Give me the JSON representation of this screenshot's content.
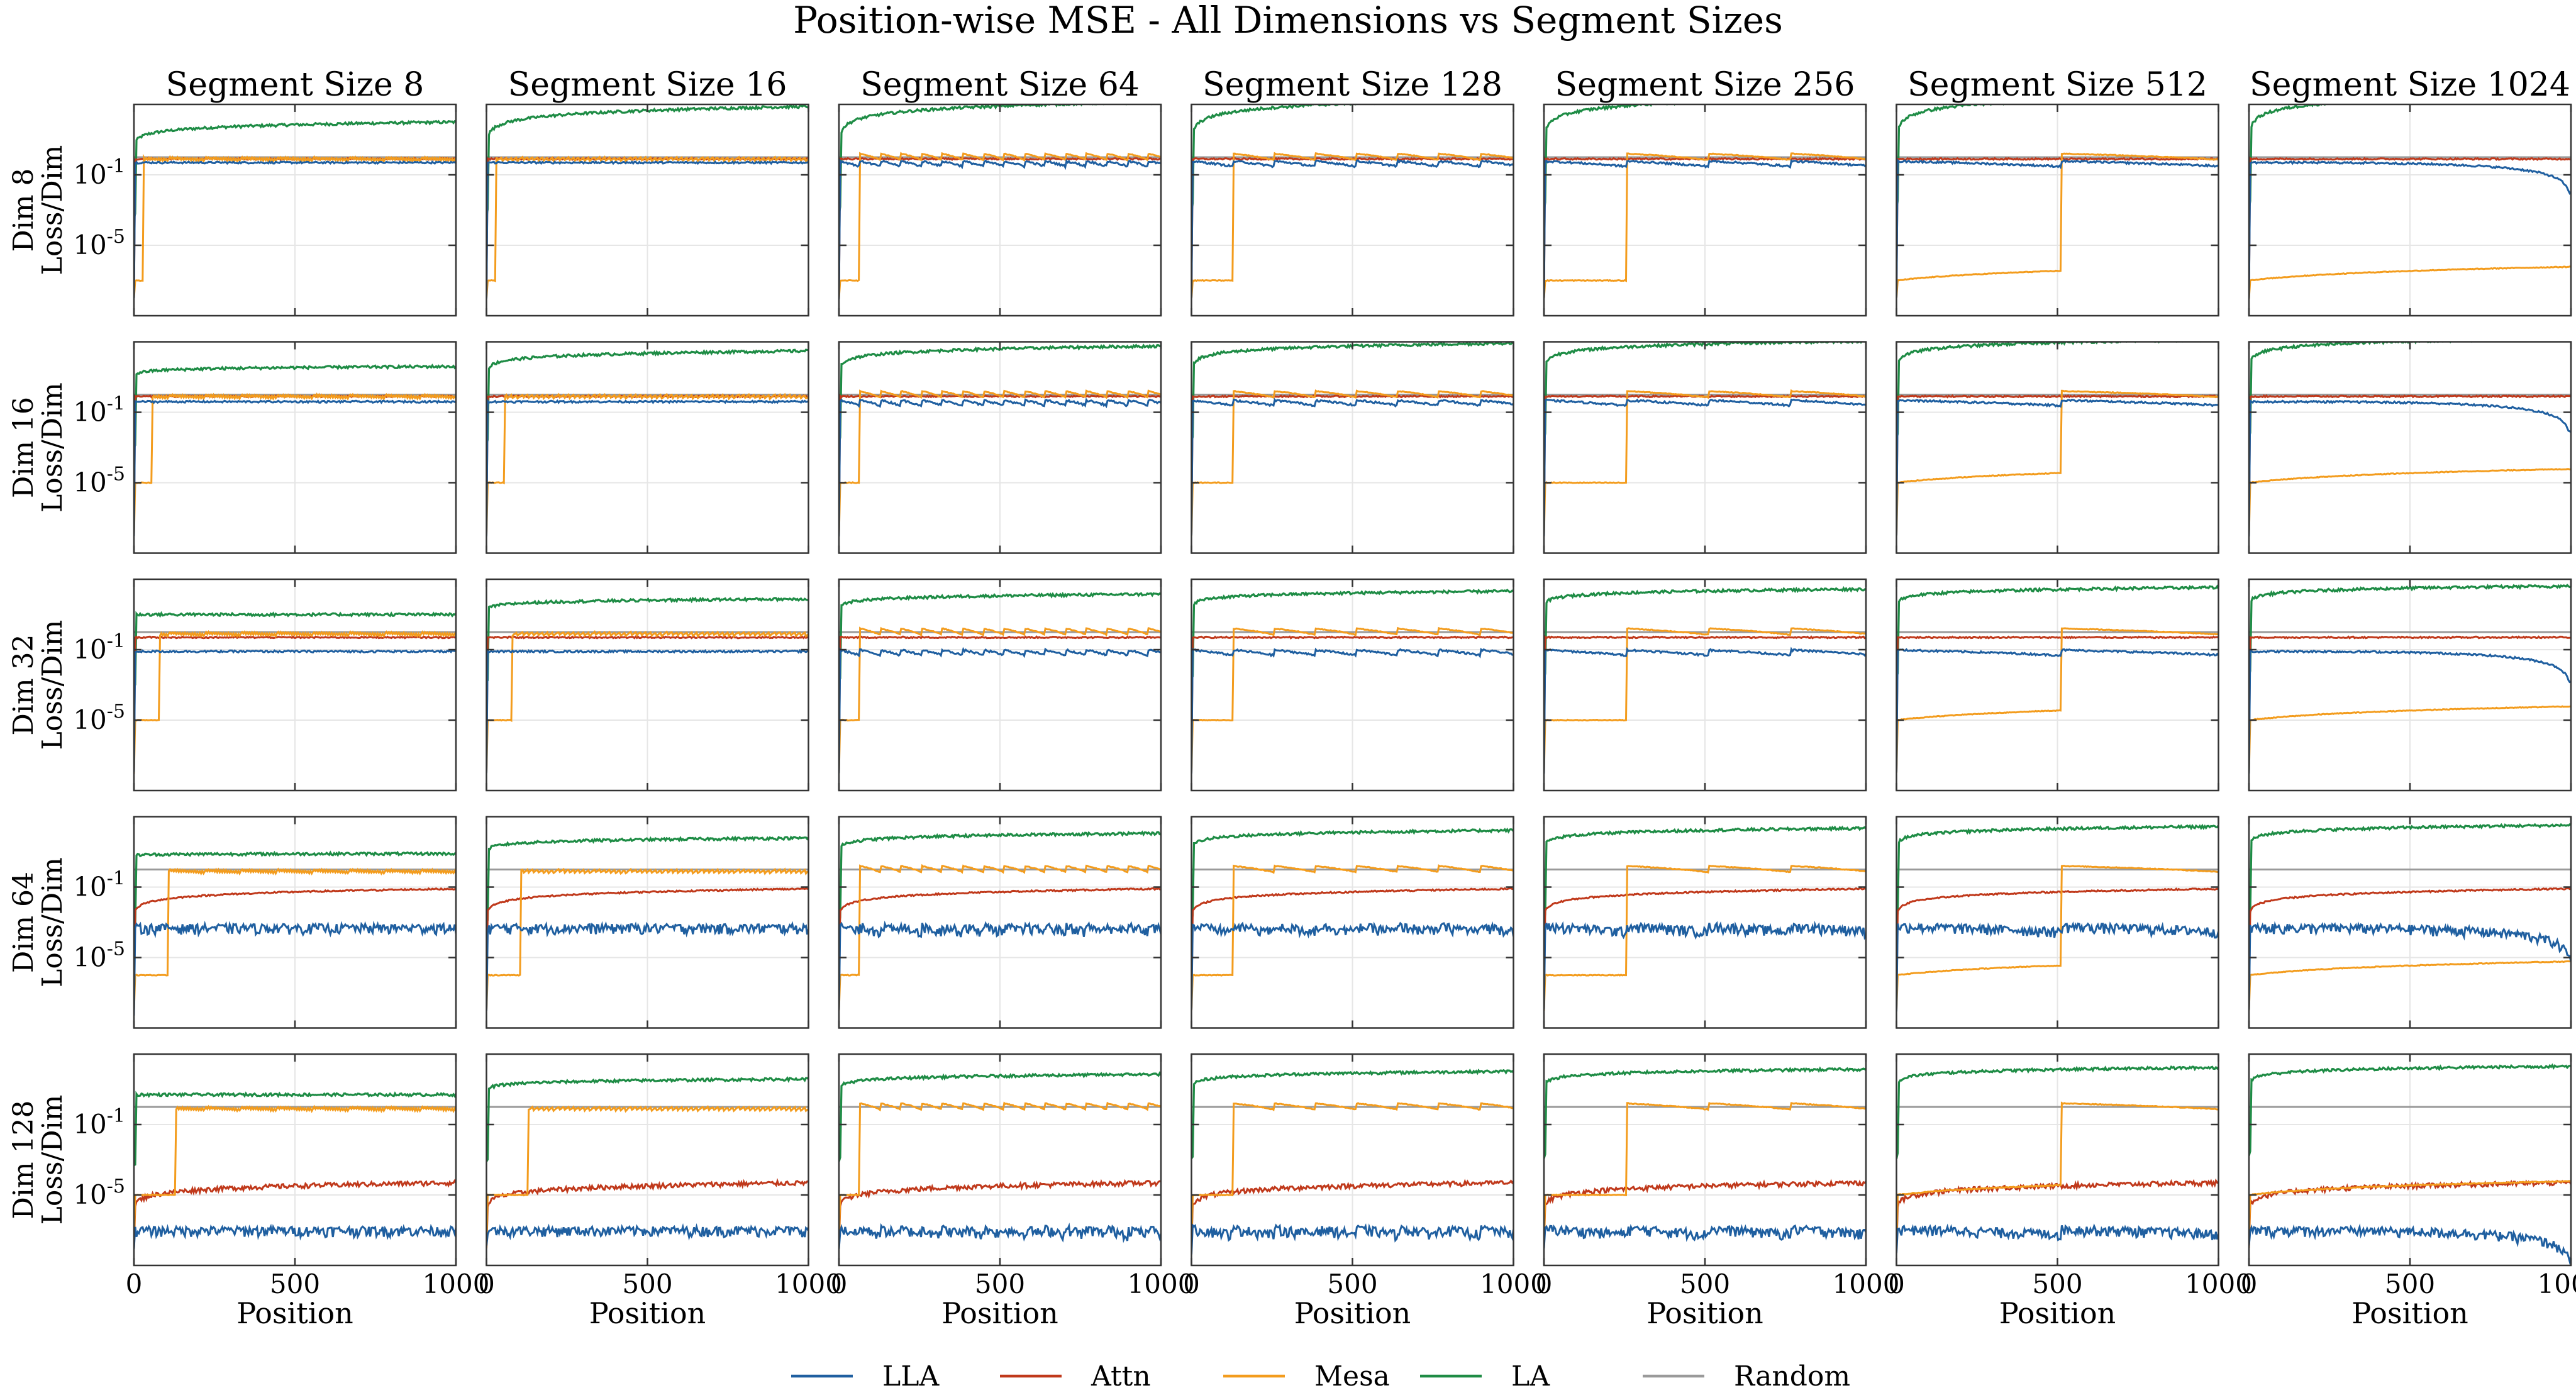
{
  "figure": {
    "title": "Position-wise MSE - All Dimensions vs Segment Sizes"
  },
  "chart_data": {
    "type": "line",
    "title": "Position-wise MSE - All Dimensions vs Segment Sizes",
    "xlabel": "Position",
    "ylabel_suffix": "Loss/Dim",
    "yscale": "log",
    "xlim": [
      0,
      1000
    ],
    "ylim": [
      1e-09,
      1000
    ],
    "grid": true,
    "legend_placement": "bottom-center",
    "x_ticks": [
      0,
      500,
      1000
    ],
    "x_tick_labels": [
      "0",
      "500",
      "1000"
    ],
    "y_ticks": [
      0.1,
      1e-05
    ],
    "y_tick_labels": [
      "10^-1",
      "10^-5"
    ],
    "segment_sizes": [
      8,
      16,
      64,
      128,
      256,
      512,
      1024
    ],
    "column_titles": [
      "Segment Size 8",
      "Segment Size 16",
      "Segment Size 64",
      "Segment Size 128",
      "Segment Size 256",
      "Segment Size 512",
      "Segment Size 1024"
    ],
    "dims": [
      8,
      16,
      32,
      64,
      128
    ],
    "row_titles": [
      "Dim 8",
      "Dim 16",
      "Dim 32",
      "Dim 64",
      "Dim 128"
    ],
    "series": [
      {
        "name": "LLA",
        "color": "#1f5fa0"
      },
      {
        "name": "Attn",
        "color": "#c0391b"
      },
      {
        "name": "Mesa",
        "color": "#f39c1d"
      },
      {
        "name": "LA",
        "color": "#1e8c45"
      },
      {
        "name": "Random",
        "color": "#9a9a9a"
      }
    ],
    "random_level": 1.0,
    "levels": {
      "LA": {
        "start": [
          3,
          10,
          10,
          6,
          5
        ],
        "end": [
          100,
          40,
          10,
          8,
          5
        ]
      },
      "Attn": [
        0.8,
        0.8,
        0.5,
        0.08,
        5e-05
      ],
      "LLA": [
        0.5,
        0.4,
        0.08,
        0.0005,
        1e-07
      ],
      "Mesa_low": [
        1e-07,
        1e-05,
        1e-05,
        1e-06,
        1e-05
      ],
      "Mesa_high": [
        1,
        1,
        1,
        1,
        1
      ]
    }
  }
}
